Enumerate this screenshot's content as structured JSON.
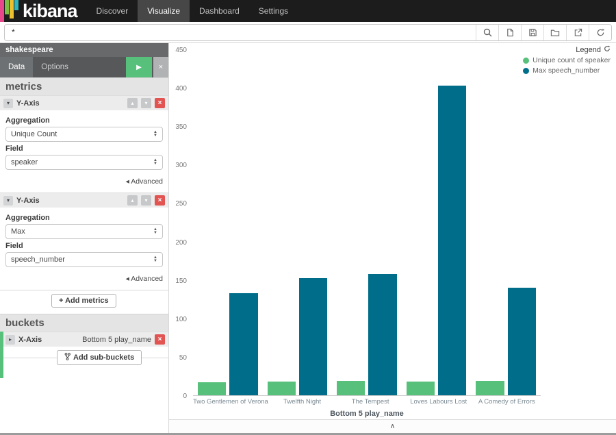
{
  "topbar": {
    "brand": "kibana",
    "nav": [
      {
        "label": "Discover",
        "active": false
      },
      {
        "label": "Visualize",
        "active": true
      },
      {
        "label": "Dashboard",
        "active": false
      },
      {
        "label": "Settings",
        "active": false
      }
    ]
  },
  "searchbar": {
    "query": "*"
  },
  "sidebar": {
    "index": "shakespeare",
    "tabs": [
      {
        "label": "Data",
        "active": true
      },
      {
        "label": "Options",
        "active": false
      }
    ],
    "metrics_header": "metrics",
    "buckets_header": "buckets",
    "metrics": [
      {
        "title": "Y-Axis",
        "aggregation_label": "Aggregation",
        "aggregation": "Unique Count",
        "field_label": "Field",
        "field": "speaker",
        "advanced": "Advanced"
      },
      {
        "title": "Y-Axis",
        "aggregation_label": "Aggregation",
        "aggregation": "Max",
        "field_label": "Field",
        "field": "speech_number",
        "advanced": "Advanced"
      }
    ],
    "add_metrics": "+ Add metrics",
    "buckets": [
      {
        "title": "X-Axis",
        "description": "Bottom 5 play_name"
      }
    ],
    "add_sub_buckets": "Add sub-buckets"
  },
  "legend": {
    "title": "Legend",
    "items": [
      {
        "label": "Unique count of speaker",
        "color": "#57c17b"
      },
      {
        "label": "Max speech_number",
        "color": "#006e8a"
      }
    ]
  },
  "chart_data": {
    "type": "bar",
    "title": "",
    "categories": [
      "Two Gentlemen of Verona",
      "Twelfth Night",
      "The Tempest",
      "Loves Labours Lost",
      "A Comedy of Errors"
    ],
    "series": [
      {
        "name": "Unique count of speaker",
        "color": "#57c17b",
        "values": [
          17,
          18,
          19,
          18,
          19
        ]
      },
      {
        "name": "Max speech_number",
        "color": "#006e8a",
        "values": [
          133,
          153,
          158,
          404,
          140
        ]
      }
    ],
    "xlabel": "Bottom 5 play_name",
    "ylabel": "",
    "ylim": [
      0,
      450
    ],
    "yticks": [
      0,
      50,
      100,
      150,
      200,
      250,
      300,
      350,
      400,
      450
    ],
    "grid": false,
    "legend_position": "top-right"
  }
}
